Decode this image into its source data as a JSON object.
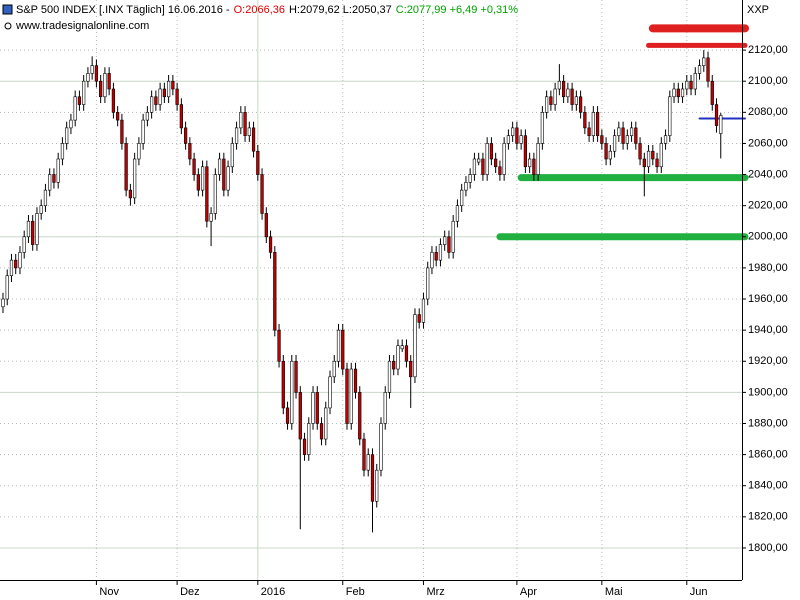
{
  "chart_data": {
    "type": "candlestick",
    "title": "S&P 500 INDEX [.INX  Täglich] 16.06.2016 -",
    "title_parts": [
      {
        "text": "O:2066,36",
        "color": "#e00000"
      },
      {
        "text": "H:2079,62 L:2050,37",
        "color": "#000000"
      },
      {
        "text": "C:2077,99 +6,49 +0,31%",
        "color": "#00a000"
      }
    ],
    "subtitle": "www.tradesignalonline.com",
    "corner_label": "XXP",
    "up_color": "#ffffff",
    "down_color": "#c00000",
    "xlim": [
      -0.7,
      174
    ],
    "xticks": [
      {
        "value": 22,
        "label": "Nov"
      },
      {
        "value": 41,
        "label": "Dez"
      },
      {
        "value": 60,
        "label": "2016"
      },
      {
        "value": 80,
        "label": "Feb"
      },
      {
        "value": 99,
        "label": "Mrz"
      },
      {
        "value": 121,
        "label": "Apr"
      },
      {
        "value": 141,
        "label": "Mai"
      },
      {
        "value": 161,
        "label": "Jun"
      }
    ],
    "ylim": [
      1779.4,
      2152.2
    ],
    "yticks": [
      {
        "value": 1800,
        "label": "1800,00"
      },
      {
        "value": 1820,
        "label": "1820,00"
      },
      {
        "value": 1840,
        "label": "1840,00"
      },
      {
        "value": 1860,
        "label": "1860,00"
      },
      {
        "value": 1880,
        "label": "1880,00"
      },
      {
        "value": 1900,
        "label": "1900,00"
      },
      {
        "value": 1920,
        "label": "1920,00"
      },
      {
        "value": 1940,
        "label": "1940,00"
      },
      {
        "value": 1960,
        "label": "1960,00"
      },
      {
        "value": 1980,
        "label": "1980,00"
      },
      {
        "value": 2000,
        "label": "2000,00"
      },
      {
        "value": 2020,
        "label": "2020,00"
      },
      {
        "value": 2040,
        "label": "2040,00"
      },
      {
        "value": 2060,
        "label": "2060,00"
      },
      {
        "value": 2080,
        "label": "2080,00"
      },
      {
        "value": 2100,
        "label": "2100,00"
      },
      {
        "value": 2120,
        "label": "2120,00"
      }
    ],
    "grid": true,
    "levels": [
      {
        "value": 2134,
        "start": 153,
        "color": "#e02020"
      },
      {
        "value": 2123,
        "start": 152,
        "color": "#e02020"
      },
      {
        "value": 2076,
        "start": 164,
        "color": "#2030c0"
      },
      {
        "value": 2038,
        "start": 122,
        "color": "#20b040"
      },
      {
        "value": 2000,
        "start": 117,
        "color": "#20b040"
      }
    ],
    "candles": [
      [
        1955,
        1964,
        1951,
        1960
      ],
      [
        1960,
        1979,
        1956,
        1975
      ],
      [
        1975,
        1989,
        1971,
        1985
      ],
      [
        1985,
        1989,
        1976,
        1980
      ],
      [
        1980,
        1994,
        1976,
        1990
      ],
      [
        1990,
        2004,
        1986,
        2000
      ],
      [
        2000,
        2014,
        1996,
        2010
      ],
      [
        2010,
        2014,
        1991,
        1995
      ],
      [
        1995,
        2019,
        1991,
        2015
      ],
      [
        2015,
        2024,
        2011,
        2020
      ],
      [
        2020,
        2034,
        2016,
        2030
      ],
      [
        2030,
        2044,
        2026,
        2040
      ],
      [
        2040,
        2044,
        2031,
        2035
      ],
      [
        2035,
        2054,
        2031,
        2050
      ],
      [
        2050,
        2064,
        2046,
        2060
      ],
      [
        2060,
        2074,
        2056,
        2070
      ],
      [
        2070,
        2079,
        2066,
        2075
      ],
      [
        2075,
        2094,
        2071,
        2090
      ],
      [
        2090,
        2094,
        2081,
        2085
      ],
      [
        2085,
        2104,
        2081,
        2100
      ],
      [
        2100,
        2109,
        2096,
        2105
      ],
      [
        2105,
        2116,
        2101,
        2110
      ],
      [
        2110,
        2114,
        2096,
        2100
      ],
      [
        2100,
        2104,
        2086,
        2090
      ],
      [
        2090,
        2109,
        2086,
        2105
      ],
      [
        2105,
        2109,
        2091,
        2095
      ],
      [
        2095,
        2099,
        2076,
        2080
      ],
      [
        2080,
        2084,
        2071,
        2075
      ],
      [
        2075,
        2079,
        2056,
        2060
      ],
      [
        2060,
        2064,
        2026,
        2030
      ],
      [
        2030,
        2034,
        2020,
        2025
      ],
      [
        2025,
        2054,
        2021,
        2050
      ],
      [
        2050,
        2064,
        2046,
        2060
      ],
      [
        2060,
        2079,
        2056,
        2075
      ],
      [
        2075,
        2084,
        2071,
        2080
      ],
      [
        2080,
        2094,
        2076,
        2090
      ],
      [
        2090,
        2094,
        2081,
        2085
      ],
      [
        2085,
        2099,
        2081,
        2095
      ],
      [
        2095,
        2099,
        2086,
        2090
      ],
      [
        2090,
        2104,
        2086,
        2100
      ],
      [
        2100,
        2104,
        2091,
        2095
      ],
      [
        2095,
        2099,
        2081,
        2085
      ],
      [
        2085,
        2089,
        2066,
        2070
      ],
      [
        2070,
        2074,
        2056,
        2060
      ],
      [
        2060,
        2064,
        2046,
        2050
      ],
      [
        2050,
        2054,
        2036,
        2040
      ],
      [
        2040,
        2044,
        2026,
        2030
      ],
      [
        2030,
        2049,
        2026,
        2045
      ],
      [
        2045,
        2049,
        2006,
        2010
      ],
      [
        2010,
        2019,
        1994,
        2015
      ],
      [
        2015,
        2044,
        2011,
        2040
      ],
      [
        2040,
        2054,
        2036,
        2050
      ],
      [
        2050,
        2054,
        2026,
        2030
      ],
      [
        2030,
        2049,
        2026,
        2045
      ],
      [
        2045,
        2064,
        2041,
        2060
      ],
      [
        2060,
        2074,
        2056,
        2070
      ],
      [
        2070,
        2084,
        2066,
        2080
      ],
      [
        2080,
        2084,
        2061,
        2065
      ],
      [
        2065,
        2074,
        2061,
        2070
      ],
      [
        2070,
        2074,
        2051,
        2055
      ],
      [
        2055,
        2059,
        2036,
        2040
      ],
      [
        2040,
        2044,
        2011,
        2015
      ],
      [
        2015,
        2019,
        1996,
        2000
      ],
      [
        2000,
        2004,
        1986,
        1990
      ],
      [
        1990,
        1994,
        1936,
        1940
      ],
      [
        1940,
        1944,
        1916,
        1920
      ],
      [
        1920,
        1924,
        1886,
        1890
      ],
      [
        1890,
        1894,
        1876,
        1880
      ],
      [
        1880,
        1924,
        1876,
        1920
      ],
      [
        1920,
        1924,
        1896,
        1900
      ],
      [
        1900,
        1904,
        1812,
        1870
      ],
      [
        1870,
        1874,
        1856,
        1860
      ],
      [
        1860,
        1884,
        1856,
        1880
      ],
      [
        1880,
        1904,
        1876,
        1900
      ],
      [
        1900,
        1904,
        1876,
        1880
      ],
      [
        1880,
        1884,
        1866,
        1870
      ],
      [
        1870,
        1894,
        1866,
        1890
      ],
      [
        1890,
        1914,
        1886,
        1910
      ],
      [
        1910,
        1924,
        1906,
        1920
      ],
      [
        1920,
        1944,
        1916,
        1940
      ],
      [
        1940,
        1944,
        1911,
        1915
      ],
      [
        1915,
        1919,
        1876,
        1880
      ],
      [
        1880,
        1919,
        1876,
        1915
      ],
      [
        1915,
        1919,
        1896,
        1900
      ],
      [
        1900,
        1904,
        1866,
        1870
      ],
      [
        1870,
        1874,
        1846,
        1850
      ],
      [
        1850,
        1864,
        1846,
        1860
      ],
      [
        1860,
        1864,
        1810,
        1830
      ],
      [
        1830,
        1854,
        1826,
        1850
      ],
      [
        1850,
        1884,
        1846,
        1880
      ],
      [
        1880,
        1904,
        1876,
        1900
      ],
      [
        1900,
        1924,
        1896,
        1920
      ],
      [
        1920,
        1924,
        1911,
        1915
      ],
      [
        1915,
        1934,
        1911,
        1930
      ],
      [
        1928,
        1934,
        1926,
        1930
      ],
      [
        1930,
        1934,
        1916,
        1920
      ],
      [
        1920,
        1924,
        1890,
        1910
      ],
      [
        1910,
        1954,
        1906,
        1950
      ],
      [
        1950,
        1954,
        1941,
        1945
      ],
      [
        1945,
        1964,
        1941,
        1960
      ],
      [
        1960,
        1984,
        1956,
        1980
      ],
      [
        1980,
        1994,
        1976,
        1990
      ],
      [
        1990,
        1994,
        1981,
        1985
      ],
      [
        1985,
        1999,
        1981,
        1995
      ],
      [
        1995,
        2004,
        1991,
        2000
      ],
      [
        2000,
        2004,
        1986,
        1990
      ],
      [
        1990,
        2014,
        1986,
        2010
      ],
      [
        2010,
        2024,
        2006,
        2020
      ],
      [
        2020,
        2034,
        2016,
        2030
      ],
      [
        2030,
        2039,
        2026,
        2035
      ],
      [
        2035,
        2044,
        2031,
        2040
      ],
      [
        2040,
        2054,
        2036,
        2050
      ],
      [
        2048,
        2054,
        2046,
        2050
      ],
      [
        2050,
        2054,
        2036,
        2040
      ],
      [
        2040,
        2064,
        2036,
        2060
      ],
      [
        2060,
        2064,
        2046,
        2050
      ],
      [
        2050,
        2054,
        2041,
        2045
      ],
      [
        2045,
        2049,
        2036,
        2040
      ],
      [
        2040,
        2064,
        2036,
        2060
      ],
      [
        2060,
        2069,
        2056,
        2065
      ],
      [
        2065,
        2074,
        2061,
        2070
      ],
      [
        2070,
        2074,
        2056,
        2060
      ],
      [
        2060,
        2069,
        2056,
        2065
      ],
      [
        2065,
        2069,
        2041,
        2045
      ],
      [
        2045,
        2054,
        2041,
        2050
      ],
      [
        2050,
        2054,
        2036,
        2040
      ],
      [
        2040,
        2064,
        2036,
        2060
      ],
      [
        2060,
        2084,
        2056,
        2080
      ],
      [
        2080,
        2094,
        2076,
        2090
      ],
      [
        2090,
        2094,
        2081,
        2085
      ],
      [
        2085,
        2099,
        2081,
        2095
      ],
      [
        2095,
        2111,
        2091,
        2100
      ],
      [
        2100,
        2104,
        2086,
        2090
      ],
      [
        2090,
        2099,
        2086,
        2095
      ],
      [
        2095,
        2099,
        2081,
        2085
      ],
      [
        2085,
        2094,
        2081,
        2090
      ],
      [
        2090,
        2094,
        2076,
        2080
      ],
      [
        2080,
        2084,
        2066,
        2070
      ],
      [
        2070,
        2074,
        2061,
        2065
      ],
      [
        2065,
        2084,
        2061,
        2080
      ],
      [
        2080,
        2084,
        2061,
        2065
      ],
      [
        2065,
        2069,
        2056,
        2060
      ],
      [
        2060,
        2064,
        2046,
        2050
      ],
      [
        2050,
        2059,
        2046,
        2055
      ],
      [
        2055,
        2069,
        2051,
        2065
      ],
      [
        2065,
        2074,
        2061,
        2070
      ],
      [
        2070,
        2074,
        2056,
        2060
      ],
      [
        2060,
        2069,
        2056,
        2065
      ],
      [
        2065,
        2074,
        2061,
        2070
      ],
      [
        2070,
        2074,
        2056,
        2060
      ],
      [
        2060,
        2064,
        2046,
        2050
      ],
      [
        2050,
        2054,
        2026,
        2045
      ],
      [
        2045,
        2059,
        2041,
        2055
      ],
      [
        2055,
        2059,
        2046,
        2050
      ],
      [
        2050,
        2054,
        2041,
        2045
      ],
      [
        2045,
        2064,
        2041,
        2060
      ],
      [
        2060,
        2069,
        2056,
        2065
      ],
      [
        2065,
        2094,
        2061,
        2090
      ],
      [
        2090,
        2099,
        2086,
        2095
      ],
      [
        2095,
        2099,
        2086,
        2090
      ],
      [
        2090,
        2099,
        2086,
        2095
      ],
      [
        2095,
        2104,
        2091,
        2100
      ],
      [
        2100,
        2104,
        2091,
        2095
      ],
      [
        2095,
        2109,
        2091,
        2105
      ],
      [
        2105,
        2114,
        2101,
        2110
      ],
      [
        2110,
        2120,
        2106,
        2115
      ],
      [
        2115,
        2119,
        2096,
        2100
      ],
      [
        2100,
        2104,
        2081,
        2085
      ],
      [
        2085,
        2089,
        2067,
        2071.5
      ],
      [
        2066.36,
        2079.62,
        2050.37,
        2077.99
      ]
    ]
  }
}
